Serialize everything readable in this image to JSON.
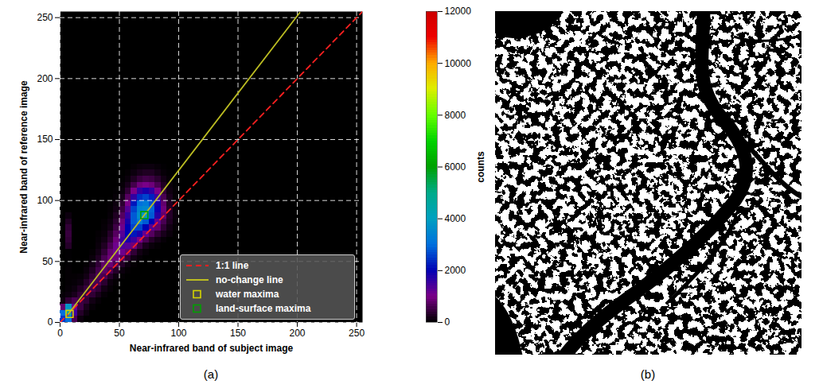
{
  "chart_data": {
    "type": "heatmap",
    "panel": "(a)",
    "xlabel": "Near-infrared band of subject image",
    "ylabel": "Near-infrared band of reference image",
    "xlim": [
      0,
      255
    ],
    "ylim": [
      0,
      255
    ],
    "xticks": [
      0,
      50,
      100,
      150,
      200,
      250
    ],
    "yticks": [
      0,
      50,
      100,
      150,
      200,
      250
    ],
    "grid": true,
    "legend": "lower right",
    "x_edges": [
      0,
      5,
      10,
      15,
      20,
      25,
      30,
      35,
      40,
      45,
      50,
      55,
      60,
      65,
      70,
      75,
      80,
      85,
      90,
      95,
      100,
      105
    ],
    "y_edges": [
      0,
      5,
      10,
      15,
      20,
      25,
      30,
      35,
      40,
      45,
      50,
      55,
      60,
      65,
      70,
      75,
      80,
      85,
      90,
      95,
      100,
      105,
      110,
      115,
      120,
      125,
      130
    ],
    "counts": [
      [
        2500,
        3000,
        600,
        100,
        0,
        0,
        0,
        0,
        0,
        0,
        0,
        0,
        0,
        0,
        0,
        0,
        0,
        0,
        0,
        0,
        0
      ],
      [
        3000,
        4500,
        1500,
        300,
        100,
        0,
        0,
        0,
        0,
        0,
        0,
        0,
        0,
        0,
        0,
        0,
        0,
        0,
        0,
        0,
        0
      ],
      [
        800,
        3800,
        1200,
        500,
        200,
        50,
        0,
        0,
        0,
        0,
        0,
        0,
        0,
        0,
        0,
        0,
        0,
        0,
        0,
        0,
        0
      ],
      [
        100,
        400,
        600,
        500,
        400,
        150,
        50,
        0,
        0,
        0,
        0,
        0,
        0,
        0,
        0,
        0,
        0,
        0,
        0,
        0,
        0
      ],
      [
        50,
        100,
        200,
        400,
        500,
        400,
        200,
        50,
        0,
        0,
        0,
        0,
        0,
        0,
        0,
        0,
        0,
        0,
        0,
        0,
        0
      ],
      [
        0,
        50,
        100,
        250,
        450,
        550,
        400,
        150,
        50,
        0,
        0,
        0,
        0,
        0,
        0,
        0,
        0,
        0,
        0,
        0,
        0
      ],
      [
        0,
        30,
        50,
        100,
        300,
        550,
        600,
        350,
        100,
        30,
        0,
        0,
        0,
        0,
        0,
        0,
        0,
        0,
        0,
        0,
        0
      ],
      [
        0,
        30,
        30,
        50,
        150,
        400,
        650,
        600,
        300,
        100,
        30,
        0,
        0,
        0,
        0,
        0,
        0,
        0,
        0,
        0,
        0
      ],
      [
        0,
        30,
        0,
        0,
        80,
        250,
        550,
        750,
        600,
        300,
        100,
        30,
        0,
        0,
        0,
        0,
        0,
        0,
        0,
        0,
        0
      ],
      [
        0,
        20,
        0,
        0,
        30,
        150,
        400,
        750,
        850,
        600,
        300,
        100,
        30,
        0,
        0,
        0,
        0,
        0,
        0,
        0,
        0
      ],
      [
        0,
        20,
        0,
        0,
        0,
        80,
        250,
        600,
        900,
        900,
        700,
        400,
        150,
        50,
        0,
        0,
        0,
        0,
        0,
        0,
        0
      ],
      [
        0,
        20,
        0,
        0,
        0,
        30,
        150,
        400,
        800,
        1100,
        1100,
        800,
        400,
        150,
        50,
        0,
        0,
        0,
        0,
        0,
        0
      ],
      [
        0,
        300,
        0,
        0,
        0,
        0,
        80,
        250,
        600,
        1100,
        1400,
        1300,
        900,
        500,
        200,
        80,
        30,
        0,
        0,
        0,
        0
      ],
      [
        0,
        400,
        0,
        0,
        0,
        0,
        50,
        150,
        400,
        900,
        1500,
        1800,
        1500,
        1000,
        600,
        300,
        150,
        50,
        0,
        0,
        0
      ],
      [
        0,
        450,
        0,
        0,
        0,
        0,
        30,
        80,
        300,
        700,
        1300,
        2000,
        2200,
        1800,
        1200,
        700,
        400,
        200,
        80,
        0,
        0
      ],
      [
        0,
        400,
        0,
        0,
        0,
        0,
        0,
        50,
        150,
        500,
        1100,
        2000,
        2600,
        2600,
        2000,
        1300,
        800,
        400,
        150,
        30,
        0
      ],
      [
        0,
        250,
        0,
        0,
        0,
        0,
        0,
        30,
        100,
        350,
        900,
        1800,
        2800,
        3200,
        2800,
        2000,
        1200,
        600,
        250,
        60,
        0
      ],
      [
        0,
        100,
        0,
        0,
        0,
        0,
        0,
        0,
        50,
        250,
        700,
        1600,
        2800,
        3600,
        3800,
        2800,
        1700,
        800,
        300,
        80,
        0
      ],
      [
        0,
        0,
        0,
        0,
        0,
        0,
        0,
        0,
        30,
        150,
        500,
        1300,
        2600,
        3400,
        3500,
        2900,
        1900,
        900,
        300,
        80,
        0
      ],
      [
        0,
        0,
        0,
        0,
        0,
        0,
        0,
        0,
        20,
        100,
        350,
        1000,
        2200,
        3000,
        3200,
        2700,
        1800,
        800,
        250,
        60,
        0
      ],
      [
        0,
        0,
        0,
        0,
        0,
        0,
        0,
        0,
        0,
        50,
        200,
        700,
        1600,
        2400,
        2600,
        2300,
        1500,
        600,
        200,
        40,
        0
      ],
      [
        0,
        0,
        0,
        0,
        0,
        0,
        0,
        0,
        0,
        20,
        100,
        400,
        1000,
        1600,
        1800,
        1600,
        1000,
        400,
        120,
        30,
        0
      ],
      [
        0,
        0,
        0,
        0,
        0,
        0,
        0,
        0,
        0,
        0,
        50,
        200,
        550,
        900,
        1000,
        900,
        600,
        250,
        80,
        20,
        0
      ],
      [
        0,
        0,
        0,
        0,
        0,
        0,
        0,
        0,
        0,
        0,
        20,
        80,
        250,
        450,
        550,
        500,
        350,
        150,
        50,
        0,
        0
      ],
      [
        0,
        0,
        0,
        0,
        0,
        0,
        0,
        0,
        0,
        0,
        0,
        30,
        100,
        200,
        250,
        250,
        150,
        60,
        20,
        0,
        0
      ],
      [
        0,
        0,
        0,
        0,
        0,
        0,
        0,
        0,
        0,
        0,
        0,
        0,
        40,
        80,
        100,
        100,
        60,
        20,
        0,
        0,
        0
      ]
    ],
    "colorbar": {
      "label": "counts",
      "range": [
        0,
        12000
      ],
      "ticks": [
        0,
        2000,
        4000,
        6000,
        8000,
        10000,
        12000
      ]
    },
    "series": [
      {
        "name": "1:1 line",
        "type": "line",
        "color": "#ff2020",
        "line_style": "dashed",
        "x": [
          0,
          255
        ],
        "y": [
          0,
          255
        ]
      },
      {
        "name": "no-change line",
        "type": "line",
        "color": "#bcbd22",
        "line_style": "solid",
        "x": [
          7,
          71,
          202
        ],
        "y": [
          7,
          88,
          254
        ]
      },
      {
        "name": "water maxima",
        "type": "scatter",
        "marker": "square",
        "color": "#d4d400",
        "x": [
          8
        ],
        "y": [
          7
        ]
      },
      {
        "name": "land-surface maxima",
        "type": "scatter",
        "marker": "square",
        "color": "#00a000",
        "x": [
          71
        ],
        "y": [
          88
        ]
      }
    ]
  },
  "image": {
    "panel": "(b)",
    "colors": [
      "#000000",
      "#ffffff"
    ]
  }
}
